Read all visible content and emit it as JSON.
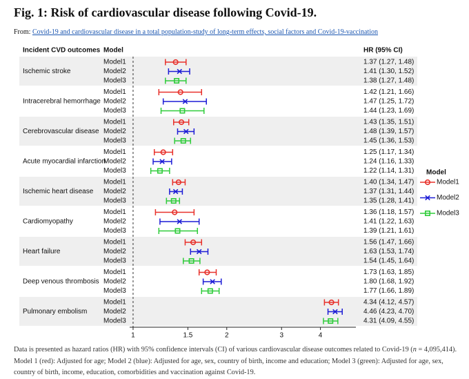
{
  "header": {
    "title": "Fig. 1: Risk of cardiovascular disease following Covid-19.",
    "from": "From: ",
    "link": "Covid-19 and cardiovascular disease in a total population-study of long-term effects, social factors and Covid-19-vaccination"
  },
  "chart_data": {
    "type": "forest",
    "column_headers": [
      "Incident CVD outcomes",
      "Model",
      "HR (95% CI)"
    ],
    "categories": [
      "Ischemic stroke",
      "Intracerebral hemorrhage",
      "Cerebrovascular disease",
      "Acute myocardial infarction",
      "Ischemic heart disease",
      "Cardiomyopathy",
      "Heart failure",
      "Deep venous thrombosis",
      "Pulmonary embolism"
    ],
    "legend_title": "Model",
    "legend": "right",
    "xscale": "log",
    "reference_line": 1,
    "xlim": [
      0.98,
      5.2
    ],
    "xticks": [
      1,
      1.5,
      2,
      3,
      4
    ],
    "series": [
      {
        "name": "Model1",
        "color": "#e8302a",
        "marker": "circle",
        "hr": [
          1.37,
          1.42,
          1.43,
          1.25,
          1.4,
          1.36,
          1.56,
          1.73,
          4.34
        ],
        "lo": [
          1.27,
          1.21,
          1.35,
          1.17,
          1.34,
          1.18,
          1.47,
          1.63,
          4.12
        ],
        "hi": [
          1.48,
          1.66,
          1.51,
          1.34,
          1.47,
          1.57,
          1.66,
          1.85,
          4.57
        ],
        "value_labels": [
          "1.37 (1.27, 1.48)",
          "1.42 (1.21, 1.66)",
          "1.43 (1.35, 1.51)",
          "1.25 (1.17, 1.34)",
          "1.40 (1.34, 1.47)",
          "1.36 (1.18, 1.57)",
          "1.56 (1.47, 1.66)",
          "1.73 (1.63, 1.85)",
          "4.34 (4.12, 4.57)"
        ]
      },
      {
        "name": "Model2",
        "color": "#1c1cd6",
        "marker": "x",
        "hr": [
          1.41,
          1.47,
          1.48,
          1.24,
          1.37,
          1.41,
          1.63,
          1.8,
          4.46
        ],
        "lo": [
          1.3,
          1.25,
          1.39,
          1.16,
          1.31,
          1.22,
          1.53,
          1.68,
          4.23
        ],
        "hi": [
          1.52,
          1.72,
          1.57,
          1.33,
          1.44,
          1.63,
          1.74,
          1.92,
          4.7
        ],
        "value_labels": [
          "1.41 (1.30, 1.52)",
          "1.47 (1.25, 1.72)",
          "1.48 (1.39, 1.57)",
          "1.24 (1.16, 1.33)",
          "1.37 (1.31, 1.44)",
          "1.41 (1.22, 1.63)",
          "1.63 (1.53, 1.74)",
          "1.80 (1.68, 1.92)",
          "4.46 (4.23, 4.70)"
        ]
      },
      {
        "name": "Model3",
        "color": "#2fcc3a",
        "marker": "square",
        "hr": [
          1.38,
          1.44,
          1.45,
          1.22,
          1.35,
          1.39,
          1.54,
          1.77,
          4.31
        ],
        "lo": [
          1.27,
          1.23,
          1.36,
          1.14,
          1.28,
          1.21,
          1.45,
          1.66,
          4.09
        ],
        "hi": [
          1.48,
          1.69,
          1.53,
          1.31,
          1.41,
          1.61,
          1.64,
          1.89,
          4.55
        ],
        "value_labels": [
          "1.38 (1.27, 1.48)",
          "1.44 (1.23, 1.69)",
          "1.45 (1.36, 1.53)",
          "1.22 (1.14, 1.31)",
          "1.35 (1.28, 1.41)",
          "1.39 (1.21, 1.61)",
          "1.54 (1.45, 1.64)",
          "1.77 (1.66, 1.89)",
          "4.31 (4.09, 4.55)"
        ]
      }
    ]
  },
  "footnote": {
    "part1": "Data is presented as hazard ratios (HR) with 95% confidence intervals (CI) of various cardiovascular disease outcomes related to Covid-19 (",
    "n": "n",
    "part2": " = 4,095,414).",
    "models": "Model 1 (red): Adjusted for age; Model 2 (blue): Adjusted for age, sex, country of birth, income and education; Model 3 (green): Adjusted for age, sex, country of birth, income, education, comorbidities and vaccination against Covid-19."
  }
}
